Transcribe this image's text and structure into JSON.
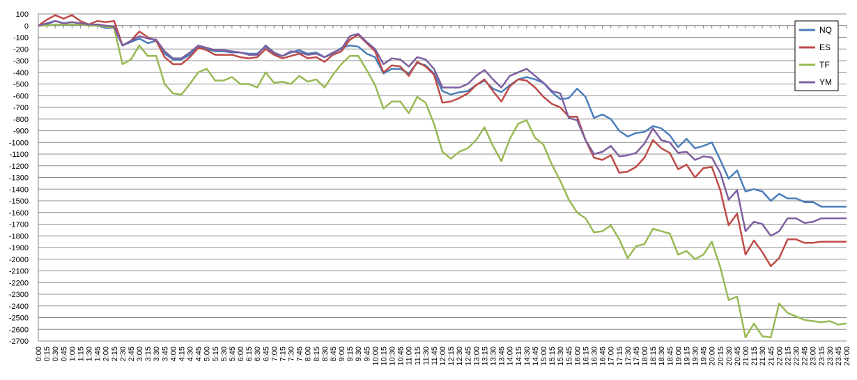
{
  "chart_data": {
    "type": "line",
    "title": "",
    "xlabel": "",
    "ylabel": "",
    "ylim": [
      -2700,
      100
    ],
    "ytick_step": 100,
    "grid": true,
    "legend_position": "top-right",
    "x": [
      "0:00",
      "0:15",
      "0:30",
      "0:45",
      "1:00",
      "1:15",
      "1:30",
      "1:45",
      "2:00",
      "2:15",
      "2:30",
      "2:45",
      "3:00",
      "3:15",
      "3:30",
      "3:45",
      "4:00",
      "4:15",
      "4:30",
      "4:45",
      "5:00",
      "5:15",
      "5:30",
      "5:45",
      "6:00",
      "6:15",
      "6:30",
      "6:45",
      "7:00",
      "7:15",
      "7:30",
      "7:45",
      "8:00",
      "8:15",
      "8:30",
      "8:45",
      "9:00",
      "9:15",
      "9:30",
      "9:45",
      "10:00",
      "10:15",
      "10:30",
      "10:45",
      "11:00",
      "11:15",
      "11:30",
      "11:45",
      "12:00",
      "12:15",
      "12:30",
      "12:45",
      "13:00",
      "13:15",
      "13:30",
      "13:45",
      "14:00",
      "14:15",
      "14:30",
      "14:45",
      "15:00",
      "15:15",
      "15:30",
      "15:45",
      "16:00",
      "16:15",
      "16:30",
      "16:45",
      "17:00",
      "17:15",
      "17:30",
      "17:45",
      "18:00",
      "18:15",
      "18:30",
      "18:45",
      "19:00",
      "19:15",
      "19:30",
      "19:45",
      "20:00",
      "20:15",
      "20:30",
      "20:45",
      "21:00",
      "21:15",
      "21:30",
      "21:45",
      "22:00",
      "22:15",
      "22:30",
      "22:45",
      "23:00",
      "23:15",
      "23:30",
      "23:45",
      "24:00"
    ],
    "series": [
      {
        "name": "NQ",
        "color": "#4a7ebb",
        "values": [
          0,
          10,
          40,
          20,
          30,
          20,
          0,
          0,
          -20,
          -20,
          -170,
          -140,
          -110,
          -150,
          -130,
          -240,
          -290,
          -290,
          -250,
          -180,
          -200,
          -220,
          -220,
          -230,
          -230,
          -240,
          -240,
          -180,
          -240,
          -260,
          -230,
          -210,
          -240,
          -230,
          -270,
          -240,
          -190,
          -170,
          -180,
          -240,
          -270,
          -410,
          -370,
          -370,
          -410,
          -320,
          -340,
          -410,
          -560,
          -590,
          -570,
          -560,
          -510,
          -470,
          -540,
          -570,
          -510,
          -460,
          -440,
          -460,
          -490,
          -570,
          -630,
          -620,
          -540,
          -610,
          -790,
          -760,
          -800,
          -900,
          -950,
          -920,
          -910,
          -860,
          -880,
          -940,
          -1040,
          -970,
          -1050,
          -1030,
          -1000,
          -1150,
          -1310,
          -1240,
          -1420,
          -1400,
          -1420,
          -1500,
          -1440,
          -1480,
          -1480,
          -1510,
          -1510,
          -1550,
          -1550,
          -1550,
          -1550
        ]
      },
      {
        "name": "ES",
        "color": "#be4b48",
        "values": [
          0,
          50,
          90,
          60,
          90,
          40,
          10,
          40,
          30,
          40,
          -170,
          -130,
          -50,
          -100,
          -130,
          -270,
          -330,
          -330,
          -270,
          -190,
          -210,
          -250,
          -250,
          -250,
          -270,
          -280,
          -270,
          -200,
          -250,
          -280,
          -260,
          -240,
          -280,
          -270,
          -310,
          -250,
          -220,
          -120,
          -80,
          -150,
          -220,
          -400,
          -340,
          -350,
          -430,
          -310,
          -350,
          -420,
          -660,
          -650,
          -620,
          -580,
          -510,
          -460,
          -560,
          -650,
          -520,
          -460,
          -470,
          -530,
          -610,
          -670,
          -700,
          -780,
          -780,
          -980,
          -1130,
          -1150,
          -1110,
          -1260,
          -1250,
          -1210,
          -1130,
          -980,
          -1050,
          -1090,
          -1230,
          -1190,
          -1300,
          -1220,
          -1210,
          -1410,
          -1710,
          -1610,
          -1960,
          -1840,
          -1940,
          -2060,
          -1990,
          -1830,
          -1830,
          -1860,
          -1860,
          -1850,
          -1850,
          -1850,
          -1850
        ]
      },
      {
        "name": "TF",
        "color": "#98b954",
        "values": [
          0,
          0,
          10,
          10,
          10,
          10,
          0,
          0,
          -10,
          -20,
          -330,
          -290,
          -170,
          -260,
          -260,
          -500,
          -580,
          -590,
          -500,
          -400,
          -370,
          -470,
          -470,
          -440,
          -500,
          -500,
          -530,
          -400,
          -490,
          -480,
          -500,
          -430,
          -480,
          -460,
          -530,
          -420,
          -330,
          -260,
          -260,
          -380,
          -510,
          -710,
          -650,
          -650,
          -750,
          -610,
          -660,
          -840,
          -1080,
          -1140,
          -1080,
          -1050,
          -980,
          -870,
          -1030,
          -1160,
          -970,
          -840,
          -810,
          -960,
          -1020,
          -1190,
          -1330,
          -1490,
          -1600,
          -1650,
          -1770,
          -1760,
          -1710,
          -1830,
          -1990,
          -1890,
          -1870,
          -1740,
          -1760,
          -1780,
          -1960,
          -1930,
          -2000,
          -1960,
          -1850,
          -2070,
          -2350,
          -2320,
          -2670,
          -2550,
          -2660,
          -2670,
          -2380,
          -2460,
          -2490,
          -2520,
          -2530,
          -2540,
          -2530,
          -2560,
          -2550
        ]
      },
      {
        "name": "YM",
        "color": "#7d5fa0",
        "values": [
          0,
          20,
          40,
          20,
          30,
          20,
          10,
          10,
          0,
          -10,
          -170,
          -130,
          -90,
          -110,
          -120,
          -220,
          -280,
          -280,
          -230,
          -170,
          -190,
          -210,
          -210,
          -220,
          -230,
          -250,
          -250,
          -170,
          -230,
          -260,
          -220,
          -230,
          -250,
          -240,
          -270,
          -230,
          -200,
          -90,
          -70,
          -140,
          -200,
          -330,
          -280,
          -290,
          -350,
          -270,
          -290,
          -370,
          -530,
          -530,
          -530,
          -500,
          -430,
          -380,
          -460,
          -530,
          -430,
          -400,
          -370,
          -430,
          -490,
          -560,
          -580,
          -790,
          -810,
          -980,
          -1100,
          -1080,
          -1030,
          -1120,
          -1110,
          -1090,
          -1010,
          -880,
          -980,
          -1000,
          -1090,
          -1080,
          -1150,
          -1120,
          -1130,
          -1260,
          -1490,
          -1410,
          -1760,
          -1680,
          -1700,
          -1800,
          -1760,
          -1650,
          -1650,
          -1690,
          -1680,
          -1650,
          -1650,
          -1650,
          -1650
        ]
      }
    ]
  }
}
